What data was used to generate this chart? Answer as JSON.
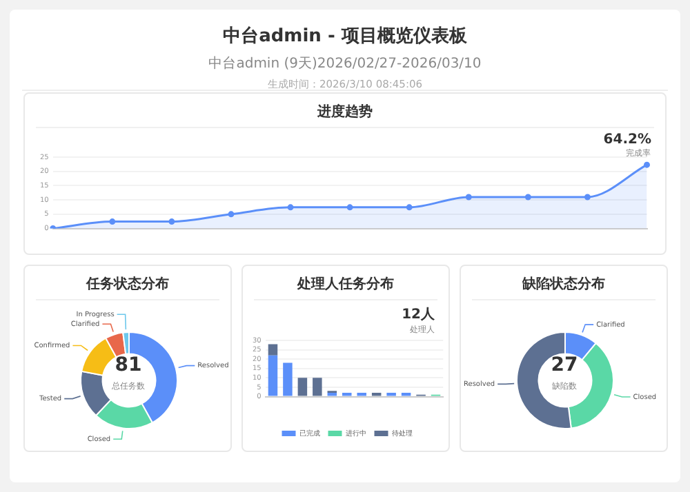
{
  "chart_data": [
    {
      "type": "other",
      "title": "中台admin - 项目概览仪表板",
      "subtitle": "中台admin (9天)2026/02/27-2026/03/10",
      "annotations": [
        "生成时间：2026/3/10 08:45:06"
      ]
    },
    {
      "type": "area",
      "title": "进度趋势",
      "categories": [
        null,
        null,
        null,
        null,
        null,
        null,
        null,
        null,
        null,
        null,
        null
      ],
      "series": [
        {
          "color": "#5b8ff9",
          "values": [
            0,
            2.4,
            2.4,
            5,
            7.4,
            7.4,
            7.4,
            11,
            11,
            11,
            22.3
          ]
        }
      ],
      "ylim": [
        0,
        25
      ],
      "yticks": [
        0,
        5,
        10,
        15,
        20,
        25
      ],
      "grid": "y",
      "marker": "circle",
      "annotations": [
        "64.2%",
        "完成率"
      ]
    },
    {
      "type": "donut",
      "title": "任务状态分布",
      "categories": [
        "Resolved",
        "Closed",
        "Tested",
        "Confirmed",
        "Clarified",
        "In Progress"
      ],
      "values": [
        42,
        20,
        16,
        14,
        6,
        2
      ],
      "colors": [
        "#5b8ff9",
        "#5ad8a6",
        "#5d7092",
        "#f6bd16",
        "#e8684a",
        "#6dc8ec"
      ],
      "annotations": [
        "81",
        "总任务数"
      ]
    },
    {
      "type": "bar",
      "title": "处理人任务分布",
      "stacked": true,
      "categories": [
        null,
        null,
        null,
        null,
        null,
        null,
        null,
        null,
        null,
        null,
        null,
        null
      ],
      "series": [
        {
          "name": "已完成",
          "color": "#5b8ff9",
          "values": [
            22,
            18,
            0,
            0,
            2,
            2,
            2,
            0,
            2,
            2,
            0,
            0
          ]
        },
        {
          "name": "进行中",
          "color": "#5ad8a6",
          "values": [
            0,
            0,
            0,
            0,
            0,
            0,
            0,
            0,
            0,
            0,
            0,
            1
          ]
        },
        {
          "name": "待处理",
          "color": "#5d7092",
          "values": [
            6,
            0,
            10,
            10,
            1,
            0,
            0,
            2,
            0,
            0,
            1,
            0
          ]
        }
      ],
      "ylim": [
        0,
        30
      ],
      "yticks": [
        0,
        5,
        10,
        15,
        20,
        25,
        30
      ],
      "grid": "y",
      "legend": "bottom",
      "annotations": [
        "12人",
        "处理人"
      ]
    },
    {
      "type": "donut",
      "title": "缺陷状态分布",
      "categories": [
        "Clarified",
        "Closed",
        "Resolved"
      ],
      "values": [
        11,
        37,
        52
      ],
      "colors": [
        "#5b8ff9",
        "#5ad8a6",
        "#5d7092"
      ],
      "annotations": [
        "27",
        "缺陷数"
      ]
    }
  ]
}
